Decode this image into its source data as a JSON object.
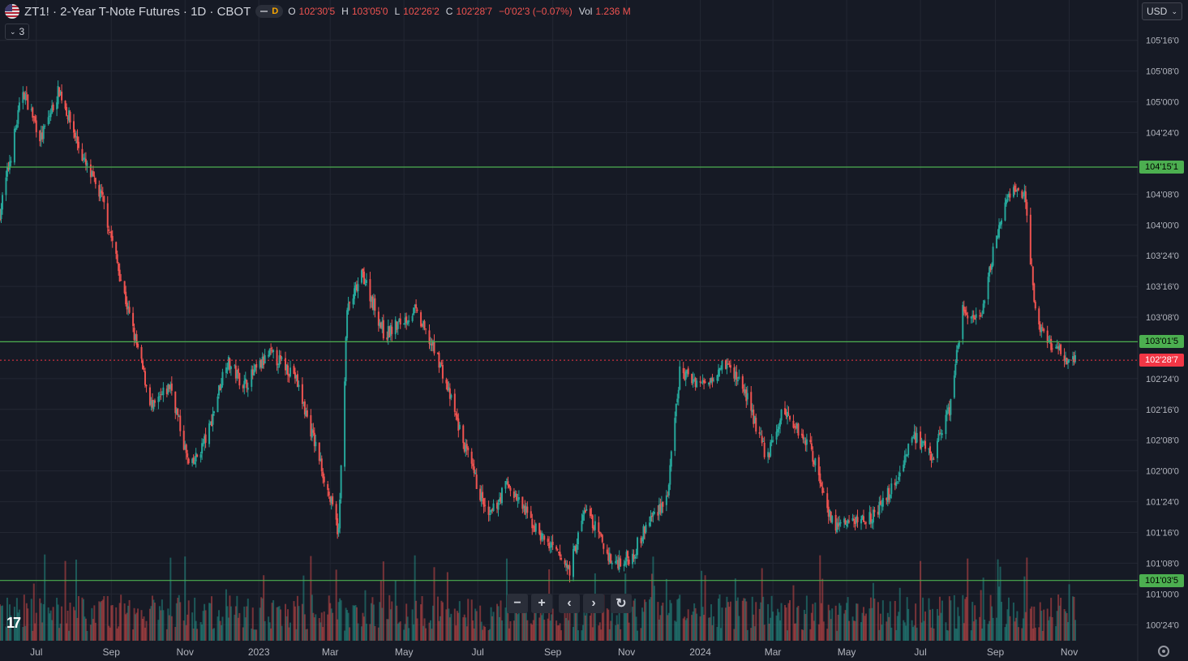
{
  "header": {
    "symbol_title": "ZT1! · 2-Year T-Note Futures · 1D · CBOT",
    "interval_badge": "D",
    "ohlc": [
      {
        "label": "O",
        "value": "102'30'5"
      },
      {
        "label": "H",
        "value": "103'05'0"
      },
      {
        "label": "L",
        "value": "102'26'2"
      },
      {
        "label": "C",
        "value": "102'28'7"
      }
    ],
    "change": "−0'02'3 (−0.07%)",
    "vol_label": "Vol",
    "vol_value": "1.236 M",
    "indicators_toggle": "3",
    "currency": "USD"
  },
  "nav_buttons": [
    {
      "name": "zoom-out-button",
      "glyph": "−"
    },
    {
      "name": "zoom-in-button",
      "glyph": "+"
    },
    {
      "name": "scroll-left-button",
      "glyph": "‹"
    },
    {
      "name": "scroll-right-button",
      "glyph": "›"
    },
    {
      "name": "reset-chart-button",
      "glyph": "↻"
    }
  ],
  "logo_text": "17",
  "colors": {
    "background": "#161a25",
    "grid": "#232733",
    "up": "#26a69a",
    "down": "#ef5350",
    "level_line": "#4caf50",
    "last_price": "#f23645"
  },
  "chart_data": {
    "type": "candlestick",
    "y_range": [
      100.62,
      105.63
    ],
    "y_ticks": [
      {
        "value": 105.5,
        "label": "105'16'0"
      },
      {
        "value": 105.25,
        "label": "105'08'0"
      },
      {
        "value": 105.0,
        "label": "105'00'0"
      },
      {
        "value": 104.75,
        "label": "104'24'0"
      },
      {
        "value": 104.25,
        "label": "104'08'0"
      },
      {
        "value": 104.0,
        "label": "104'00'0"
      },
      {
        "value": 103.75,
        "label": "103'24'0"
      },
      {
        "value": 103.5,
        "label": "103'16'0"
      },
      {
        "value": 103.25,
        "label": "103'08'0"
      },
      {
        "value": 102.75,
        "label": "102'24'0"
      },
      {
        "value": 102.5,
        "label": "102'16'0"
      },
      {
        "value": 102.25,
        "label": "102'08'0"
      },
      {
        "value": 102.0,
        "label": "102'00'0"
      },
      {
        "value": 101.75,
        "label": "101'24'0"
      },
      {
        "value": 101.5,
        "label": "101'16'0"
      },
      {
        "value": 101.25,
        "label": "101'08'0"
      },
      {
        "value": 101.0,
        "label": "101'00'0"
      },
      {
        "value": 100.75,
        "label": "100'24'0"
      }
    ],
    "x_labels": [
      "Jul",
      "Sep",
      "Nov",
      "2023",
      "Mar",
      "May",
      "Jul",
      "Sep",
      "Nov",
      "2024",
      "Mar",
      "May",
      "Jul",
      "Sep",
      "Nov"
    ],
    "level_lines": [
      {
        "value": 104.47,
        "label": "104'15'1"
      },
      {
        "value": 103.05,
        "label": "103'01'5"
      },
      {
        "value": 101.11,
        "label": "101'03'5"
      }
    ],
    "last_price": {
      "value": 102.9,
      "label": "102'28'7"
    },
    "price_anchors": [
      {
        "date": "2022-06-01",
        "value": 104.1
      },
      {
        "date": "2022-06-20",
        "value": 105.1
      },
      {
        "date": "2022-07-05",
        "value": 104.7
      },
      {
        "date": "2022-07-20",
        "value": 105.1
      },
      {
        "date": "2022-08-10",
        "value": 104.5
      },
      {
        "date": "2022-08-25",
        "value": 104.2
      },
      {
        "date": "2022-09-15",
        "value": 103.3
      },
      {
        "date": "2022-10-05",
        "value": 102.5
      },
      {
        "date": "2022-10-20",
        "value": 102.7
      },
      {
        "date": "2022-11-05",
        "value": 102.0
      },
      {
        "date": "2022-11-20",
        "value": 102.3
      },
      {
        "date": "2022-12-05",
        "value": 102.9
      },
      {
        "date": "2022-12-20",
        "value": 102.7
      },
      {
        "date": "2023-01-10",
        "value": 102.95
      },
      {
        "date": "2023-01-30",
        "value": 102.8
      },
      {
        "date": "2023-02-20",
        "value": 102.1
      },
      {
        "date": "2023-03-08",
        "value": 101.5
      },
      {
        "date": "2023-03-15",
        "value": 103.3
      },
      {
        "date": "2023-03-28",
        "value": 103.6
      },
      {
        "date": "2023-04-15",
        "value": 103.1
      },
      {
        "date": "2023-05-10",
        "value": 103.3
      },
      {
        "date": "2023-05-30",
        "value": 102.9
      },
      {
        "date": "2023-06-20",
        "value": 102.2
      },
      {
        "date": "2023-07-10",
        "value": 101.6
      },
      {
        "date": "2023-07-25",
        "value": 101.9
      },
      {
        "date": "2023-08-20",
        "value": 101.5
      },
      {
        "date": "2023-09-15",
        "value": 101.2
      },
      {
        "date": "2023-09-28",
        "value": 101.7
      },
      {
        "date": "2023-10-20",
        "value": 101.25
      },
      {
        "date": "2023-11-05",
        "value": 101.3
      },
      {
        "date": "2023-11-20",
        "value": 101.6
      },
      {
        "date": "2023-12-05",
        "value": 101.8
      },
      {
        "date": "2023-12-15",
        "value": 102.8
      },
      {
        "date": "2024-01-05",
        "value": 102.7
      },
      {
        "date": "2024-01-20",
        "value": 102.9
      },
      {
        "date": "2024-02-05",
        "value": 102.7
      },
      {
        "date": "2024-02-25",
        "value": 102.1
      },
      {
        "date": "2024-03-10",
        "value": 102.5
      },
      {
        "date": "2024-04-01",
        "value": 102.2
      },
      {
        "date": "2024-04-20",
        "value": 101.55
      },
      {
        "date": "2024-05-10",
        "value": 101.6
      },
      {
        "date": "2024-05-25",
        "value": 101.65
      },
      {
        "date": "2024-06-10",
        "value": 101.9
      },
      {
        "date": "2024-06-25",
        "value": 102.3
      },
      {
        "date": "2024-07-10",
        "value": 102.1
      },
      {
        "date": "2024-07-25",
        "value": 102.5
      },
      {
        "date": "2024-08-05",
        "value": 103.3
      },
      {
        "date": "2024-08-20",
        "value": 103.2
      },
      {
        "date": "2024-09-01",
        "value": 103.9
      },
      {
        "date": "2024-09-15",
        "value": 104.3
      },
      {
        "date": "2024-09-25",
        "value": 104.25
      },
      {
        "date": "2024-10-05",
        "value": 103.2
      },
      {
        "date": "2024-10-20",
        "value": 103.0
      },
      {
        "date": "2024-11-01",
        "value": 102.9
      }
    ]
  }
}
